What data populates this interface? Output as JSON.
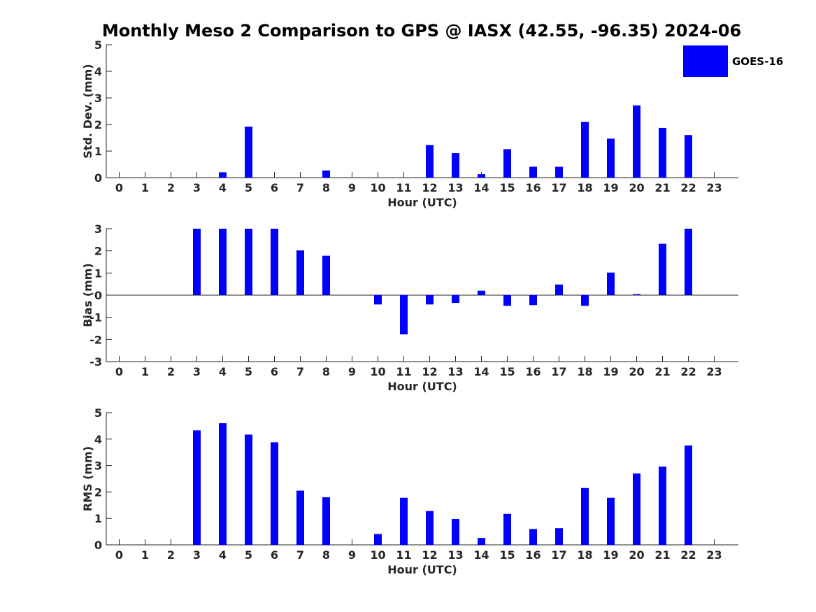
{
  "title": "Monthly Meso 2 Comparison to GPS @ IASX (42.55, -96.35) 2024-06",
  "legend": {
    "label": "GOES-16",
    "color": "#0000ff",
    "placement": "top-right"
  },
  "chart_data": [
    {
      "type": "bar",
      "series_name": "GOES-16",
      "color": "#0000ff",
      "xlabel": "Hour (UTC)",
      "ylabel": "Std. Dev. (mm)",
      "categories": [
        "0",
        "1",
        "2",
        "3",
        "4",
        "5",
        "6",
        "7",
        "8",
        "9",
        "10",
        "11",
        "12",
        "13",
        "14",
        "15",
        "16",
        "17",
        "18",
        "19",
        "20",
        "21",
        "22",
        "23"
      ],
      "ylim": [
        0,
        5
      ],
      "yticks": [
        "0",
        "1",
        "2",
        "3",
        "4",
        "5"
      ],
      "values": [
        null,
        null,
        null,
        null,
        0.2,
        1.92,
        null,
        null,
        0.27,
        null,
        null,
        null,
        1.23,
        0.92,
        0.13,
        1.07,
        0.41,
        0.41,
        2.1,
        1.47,
        2.72,
        1.87,
        1.6,
        null
      ]
    },
    {
      "type": "bar",
      "series_name": "GOES-16",
      "color": "#0000ff",
      "xlabel": "Hour (UTC)",
      "ylabel": "Bias (mm)",
      "categories": [
        "0",
        "1",
        "2",
        "3",
        "4",
        "5",
        "6",
        "7",
        "8",
        "9",
        "10",
        "11",
        "12",
        "13",
        "14",
        "15",
        "16",
        "17",
        "18",
        "19",
        "20",
        "21",
        "22",
        "23"
      ],
      "ylim": [
        -3,
        3
      ],
      "yticks": [
        "-3",
        "-2",
        "-1",
        "0",
        "1",
        "2",
        "3"
      ],
      "values": [
        null,
        null,
        null,
        3.0,
        3.0,
        3.0,
        3.0,
        2.02,
        1.78,
        null,
        -0.42,
        -1.77,
        -0.42,
        -0.35,
        0.2,
        -0.48,
        -0.45,
        0.48,
        -0.48,
        1.02,
        0.05,
        2.32,
        3.0,
        null
      ]
    },
    {
      "type": "bar",
      "series_name": "GOES-16",
      "color": "#0000ff",
      "xlabel": "Hour (UTC)",
      "ylabel": "RMS (mm)",
      "categories": [
        "0",
        "1",
        "2",
        "3",
        "4",
        "5",
        "6",
        "7",
        "8",
        "9",
        "10",
        "11",
        "12",
        "13",
        "14",
        "15",
        "16",
        "17",
        "18",
        "19",
        "20",
        "21",
        "22",
        "23"
      ],
      "ylim": [
        0,
        5
      ],
      "yticks": [
        "0",
        "1",
        "2",
        "3",
        "4",
        "5"
      ],
      "values": [
        null,
        null,
        null,
        4.33,
        4.6,
        4.17,
        3.88,
        2.05,
        1.8,
        null,
        0.41,
        1.78,
        1.28,
        0.98,
        0.26,
        1.17,
        0.6,
        0.63,
        2.15,
        1.78,
        2.7,
        2.96,
        3.76,
        null
      ]
    }
  ]
}
